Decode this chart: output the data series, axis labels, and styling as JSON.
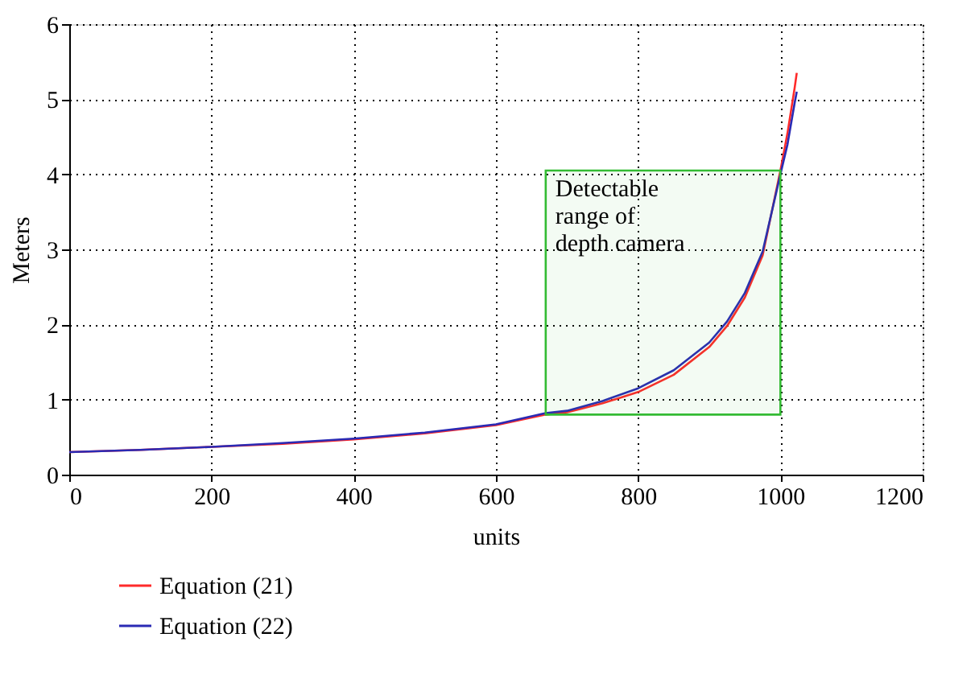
{
  "chart_data": {
    "type": "line",
    "xlabel": "units",
    "ylabel": "Meters",
    "xlim": [
      0,
      1200
    ],
    "xticks": [
      0,
      200,
      400,
      600,
      800,
      1000,
      1200
    ],
    "ylim": [
      0,
      6
    ],
    "yticks": [
      0,
      1,
      2,
      3,
      4,
      5,
      6
    ],
    "grid": true,
    "legend": "bottom left",
    "line_style": "solid",
    "marker": "none",
    "x": [
      0,
      100,
      200,
      300,
      400,
      500,
      600,
      670,
      700,
      750,
      800,
      850,
      900,
      925,
      950,
      975,
      1000,
      1010,
      1020,
      1023
    ],
    "series": [
      {
        "name": "Equation (21)",
        "color": "#ff2a2a",
        "values": [
          0.3,
          0.33,
          0.37,
          0.41,
          0.47,
          0.55,
          0.66,
          0.8,
          0.83,
          0.95,
          1.1,
          1.33,
          1.7,
          1.98,
          2.36,
          2.92,
          4.05,
          4.55,
          5.15,
          5.35
        ]
      },
      {
        "name": "Equation (22)",
        "color": "#2a2ab4",
        "values": [
          0.3,
          0.33,
          0.37,
          0.42,
          0.48,
          0.56,
          0.67,
          0.82,
          0.85,
          0.98,
          1.15,
          1.39,
          1.76,
          2.04,
          2.42,
          2.97,
          4.0,
          4.4,
          4.95,
          5.1
        ]
      }
    ],
    "bands": [
      {
        "axis": "x",
        "from": 670,
        "to": 1000,
        "color": "#33bb33",
        "label": "Detectable range of depth camera"
      }
    ]
  }
}
